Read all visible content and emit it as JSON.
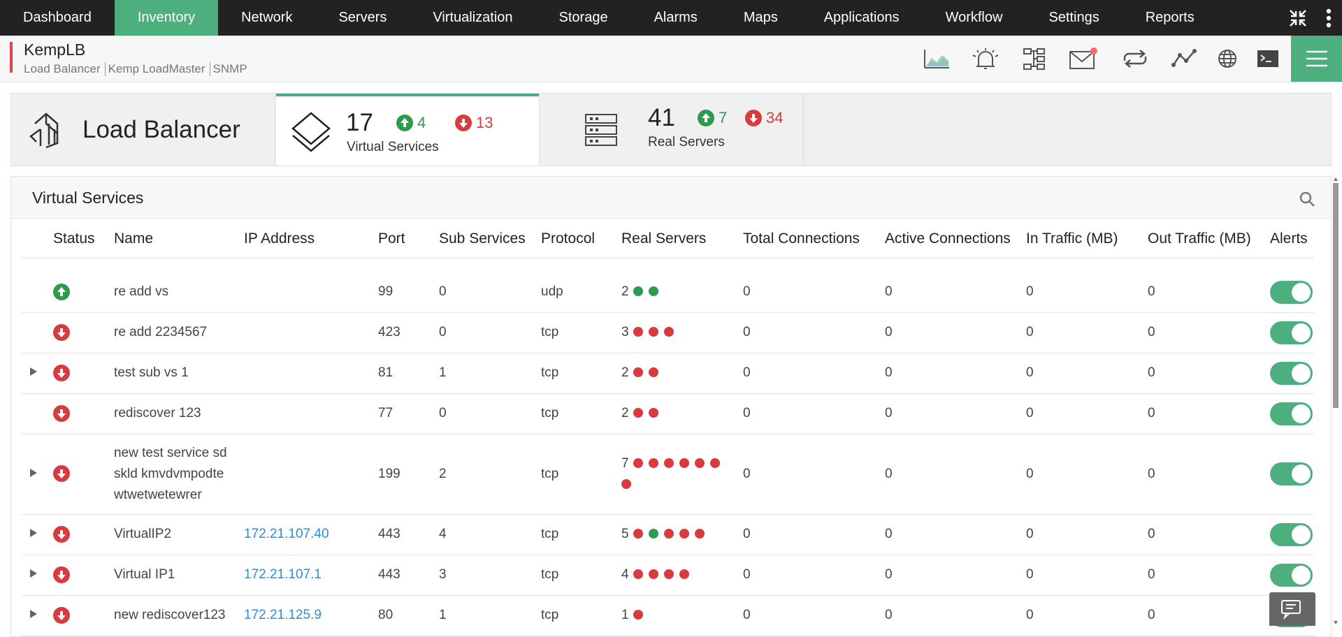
{
  "nav": {
    "items": [
      "Dashboard",
      "Inventory",
      "Network",
      "Servers",
      "Virtualization",
      "Storage",
      "Alarms",
      "Maps",
      "Applications",
      "Workflow",
      "Settings",
      "Reports"
    ],
    "active": 1
  },
  "device": {
    "name": "KempLB",
    "category": "Load Balancer",
    "model": "Kemp LoadMaster",
    "protocol": "SNMP"
  },
  "summary": {
    "title": "Load Balancer",
    "virtual_services": {
      "total": 17,
      "up": 4,
      "down": 13,
      "label": "Virtual Services"
    },
    "real_servers": {
      "total": 41,
      "up": 7,
      "down": 34,
      "label": "Real Servers"
    }
  },
  "table": {
    "title": "Virtual Services",
    "columns": [
      "Status",
      "Name",
      "IP Address",
      "Port",
      "Sub Services",
      "Protocol",
      "Real Servers",
      "Total Connections",
      "Active Connections",
      "In Traffic (MB)",
      "Out Traffic (MB)",
      "Alerts"
    ],
    "rows": [
      {
        "status": "up",
        "expandable": false,
        "name": "re add vs",
        "ip": null,
        "port": 99,
        "sub_services": 0,
        "protocol": "udp",
        "real_servers": 2,
        "real_server_status": [
          "up",
          "up"
        ],
        "total_connections": 0,
        "active_connections": 0,
        "in_traffic": 0,
        "out_traffic": 0,
        "alerts": true
      },
      {
        "status": "down",
        "expandable": false,
        "name": "re add 2234567",
        "ip": null,
        "port": 423,
        "sub_services": 0,
        "protocol": "tcp",
        "real_servers": 3,
        "real_server_status": [
          "down",
          "down",
          "down"
        ],
        "total_connections": 0,
        "active_connections": 0,
        "in_traffic": 0,
        "out_traffic": 0,
        "alerts": true
      },
      {
        "status": "down",
        "expandable": true,
        "name": "test sub vs 1",
        "ip": null,
        "port": 81,
        "sub_services": 1,
        "protocol": "tcp",
        "real_servers": 2,
        "real_server_status": [
          "down",
          "down"
        ],
        "total_connections": 0,
        "active_connections": 0,
        "in_traffic": 0,
        "out_traffic": 0,
        "alerts": true
      },
      {
        "status": "down",
        "expandable": false,
        "name": "rediscover 123",
        "ip": null,
        "port": 77,
        "sub_services": 0,
        "protocol": "tcp",
        "real_servers": 2,
        "real_server_status": [
          "down",
          "down"
        ],
        "total_connections": 0,
        "active_connections": 0,
        "in_traffic": 0,
        "out_traffic": 0,
        "alerts": true
      },
      {
        "status": "down",
        "expandable": true,
        "name": "new test service sd skld kmvdvmpodte wtwetwetewrer",
        "ip": null,
        "port": 199,
        "sub_services": 2,
        "protocol": "tcp",
        "real_servers": 7,
        "real_server_status": [
          "down",
          "down",
          "down",
          "down",
          "down",
          "down",
          "down"
        ],
        "total_connections": 0,
        "active_connections": 0,
        "in_traffic": 0,
        "out_traffic": 0,
        "alerts": true
      },
      {
        "status": "down",
        "expandable": true,
        "name": "VirtualIP2",
        "ip": "172.21.107.40",
        "port": 443,
        "sub_services": 4,
        "protocol": "tcp",
        "real_servers": 5,
        "real_server_status": [
          "down",
          "up",
          "down",
          "down",
          "down"
        ],
        "total_connections": 0,
        "active_connections": 0,
        "in_traffic": 0,
        "out_traffic": 0,
        "alerts": true
      },
      {
        "status": "down",
        "expandable": true,
        "name": "Virtual IP1",
        "ip": "172.21.107.1",
        "port": 443,
        "sub_services": 3,
        "protocol": "tcp",
        "real_servers": 4,
        "real_server_status": [
          "down",
          "down",
          "down",
          "down"
        ],
        "total_connections": 0,
        "active_connections": 0,
        "in_traffic": 0,
        "out_traffic": 0,
        "alerts": true
      },
      {
        "status": "down",
        "expandable": true,
        "name": "new rediscover123",
        "ip": "172.21.125.9",
        "port": 80,
        "sub_services": 1,
        "protocol": "tcp",
        "real_servers": 1,
        "real_server_status": [
          "down"
        ],
        "total_connections": 0,
        "active_connections": 0,
        "in_traffic": 0,
        "out_traffic": 0,
        "alerts": true
      }
    ]
  }
}
